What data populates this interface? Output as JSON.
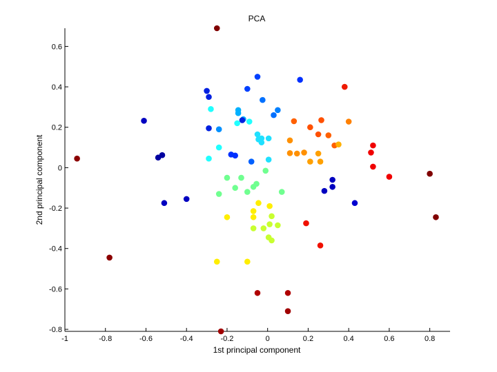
{
  "chart_data": {
    "type": "scatter",
    "title": "PCA",
    "xlabel": "1st principal component",
    "ylabel": "2nd principal component",
    "xlim": [
      -1,
      0.9
    ],
    "ylim": [
      -0.81,
      0.69
    ],
    "xticks": [
      -1,
      -0.8,
      -0.6,
      -0.4,
      -0.2,
      0,
      0.2,
      0.4,
      0.6,
      0.8
    ],
    "xtick_labels": [
      "-1",
      "-0.8",
      "-0.6",
      "-0.4",
      "-0.2",
      "0",
      "0.2",
      "0.4",
      "0.6",
      "0.8"
    ],
    "yticks": [
      -0.8,
      -0.6,
      -0.4,
      -0.2,
      0,
      0.2,
      0.4,
      0.6
    ],
    "ytick_labels": [
      "-0.8",
      "-0.6",
      "-0.4",
      "-0.2",
      "0",
      "0.2",
      "0.4",
      "0.6"
    ],
    "grid": false,
    "legend": "none",
    "colormap": "jet",
    "points": [
      {
        "x": -0.25,
        "y": 0.69,
        "color": "#800000"
      },
      {
        "x": -0.94,
        "y": 0.045,
        "color": "#8b0000"
      },
      {
        "x": -0.78,
        "y": -0.445,
        "color": "#8b0000"
      },
      {
        "x": 0.8,
        "y": -0.03,
        "color": "#800000"
      },
      {
        "x": 0.83,
        "y": -0.245,
        "color": "#800000"
      },
      {
        "x": -0.23,
        "y": -0.81,
        "color": "#a00000"
      },
      {
        "x": -0.05,
        "y": -0.62,
        "color": "#b00000"
      },
      {
        "x": 0.1,
        "y": -0.62,
        "color": "#b00000"
      },
      {
        "x": 0.1,
        "y": -0.71,
        "color": "#a00000"
      },
      {
        "x": 0.38,
        "y": 0.4,
        "color": "#ee1a00"
      },
      {
        "x": 0.52,
        "y": 0.11,
        "color": "#f00000"
      },
      {
        "x": 0.51,
        "y": 0.075,
        "color": "#f00000"
      },
      {
        "x": 0.52,
        "y": 0.005,
        "color": "#f00000"
      },
      {
        "x": 0.6,
        "y": -0.045,
        "color": "#f00000"
      },
      {
        "x": 0.19,
        "y": -0.275,
        "color": "#f01000"
      },
      {
        "x": 0.26,
        "y": -0.385,
        "color": "#f01000"
      },
      {
        "x": 0.13,
        "y": 0.23,
        "color": "#ff6000"
      },
      {
        "x": 0.21,
        "y": 0.2,
        "color": "#ff5000"
      },
      {
        "x": 0.265,
        "y": 0.235,
        "color": "#ff5000"
      },
      {
        "x": 0.25,
        "y": 0.165,
        "color": "#ff5000"
      },
      {
        "x": 0.3,
        "y": 0.16,
        "color": "#ff6000"
      },
      {
        "x": 0.33,
        "y": 0.11,
        "color": "#ff6000"
      },
      {
        "x": 0.4,
        "y": 0.228,
        "color": "#ff8000"
      },
      {
        "x": 0.11,
        "y": 0.135,
        "color": "#ff9000"
      },
      {
        "x": 0.11,
        "y": 0.072,
        "color": "#ff9000"
      },
      {
        "x": 0.145,
        "y": 0.07,
        "color": "#ff9000"
      },
      {
        "x": 0.18,
        "y": 0.075,
        "color": "#ff9000"
      },
      {
        "x": 0.21,
        "y": 0.03,
        "color": "#ffa000"
      },
      {
        "x": 0.25,
        "y": 0.07,
        "color": "#ffa000"
      },
      {
        "x": 0.26,
        "y": 0.03,
        "color": "#ffa000"
      },
      {
        "x": 0.35,
        "y": 0.115,
        "color": "#ffb000"
      },
      {
        "x": -0.045,
        "y": -0.175,
        "color": "#ffee00"
      },
      {
        "x": 0.01,
        "y": -0.19,
        "color": "#ffee00"
      },
      {
        "x": -0.2,
        "y": -0.245,
        "color": "#ffee00"
      },
      {
        "x": -0.07,
        "y": -0.215,
        "color": "#ffee00"
      },
      {
        "x": -0.07,
        "y": -0.245,
        "color": "#ffee00"
      },
      {
        "x": -0.25,
        "y": -0.465,
        "color": "#ffee00"
      },
      {
        "x": -0.1,
        "y": -0.465,
        "color": "#ffee00"
      },
      {
        "x": 0.02,
        "y": -0.24,
        "color": "#c8ff30"
      },
      {
        "x": 0.01,
        "y": -0.28,
        "color": "#c8ff30"
      },
      {
        "x": -0.07,
        "y": -0.3,
        "color": "#c8ff30"
      },
      {
        "x": -0.02,
        "y": -0.3,
        "color": "#c8ff30"
      },
      {
        "x": 0.05,
        "y": -0.285,
        "color": "#c8ff30"
      },
      {
        "x": 0.005,
        "y": -0.345,
        "color": "#c8ff30"
      },
      {
        "x": 0.02,
        "y": -0.36,
        "color": "#c8ff30"
      },
      {
        "x": -0.2,
        "y": -0.05,
        "color": "#70ff90"
      },
      {
        "x": -0.13,
        "y": -0.05,
        "color": "#70ff90"
      },
      {
        "x": -0.16,
        "y": -0.1,
        "color": "#70ff90"
      },
      {
        "x": -0.24,
        "y": -0.13,
        "color": "#70ff90"
      },
      {
        "x": -0.1,
        "y": -0.12,
        "color": "#70ff90"
      },
      {
        "x": -0.07,
        "y": -0.095,
        "color": "#70ff90"
      },
      {
        "x": -0.055,
        "y": -0.08,
        "color": "#70ff90"
      },
      {
        "x": -0.01,
        "y": -0.015,
        "color": "#70ff90"
      },
      {
        "x": 0.07,
        "y": -0.12,
        "color": "#70ff90"
      },
      {
        "x": -0.29,
        "y": 0.045,
        "color": "#20ffff"
      },
      {
        "x": -0.28,
        "y": 0.29,
        "color": "#20ffff"
      },
      {
        "x": -0.24,
        "y": 0.1,
        "color": "#20ffff"
      },
      {
        "x": -0.15,
        "y": 0.22,
        "color": "#20ffff"
      },
      {
        "x": -0.09,
        "y": 0.228,
        "color": "#20ffff"
      },
      {
        "x": -0.05,
        "y": 0.165,
        "color": "#20e0ff"
      },
      {
        "x": -0.045,
        "y": 0.14,
        "color": "#20e0ff"
      },
      {
        "x": -0.03,
        "y": 0.145,
        "color": "#20e0ff"
      },
      {
        "x": -0.03,
        "y": 0.125,
        "color": "#20e0ff"
      },
      {
        "x": 0.005,
        "y": 0.145,
        "color": "#20e0ff"
      },
      {
        "x": 0.005,
        "y": 0.04,
        "color": "#20e0ff"
      },
      {
        "x": -0.12,
        "y": 0.24,
        "color": "#00b0ff"
      },
      {
        "x": -0.145,
        "y": 0.285,
        "color": "#00b0ff"
      },
      {
        "x": -0.145,
        "y": 0.27,
        "color": "#00b0ff"
      },
      {
        "x": -0.24,
        "y": 0.19,
        "color": "#0090ff"
      },
      {
        "x": 0.05,
        "y": 0.285,
        "color": "#0080ff"
      },
      {
        "x": 0.03,
        "y": 0.26,
        "color": "#0070ff"
      },
      {
        "x": -0.025,
        "y": 0.335,
        "color": "#0070ff"
      },
      {
        "x": -0.05,
        "y": 0.45,
        "color": "#0040ff"
      },
      {
        "x": -0.1,
        "y": 0.39,
        "color": "#0040ff"
      },
      {
        "x": 0.16,
        "y": 0.435,
        "color": "#0030ff"
      },
      {
        "x": -0.3,
        "y": 0.38,
        "color": "#0020e0"
      },
      {
        "x": -0.29,
        "y": 0.35,
        "color": "#0020e0"
      },
      {
        "x": -0.29,
        "y": 0.195,
        "color": "#0020e0"
      },
      {
        "x": -0.125,
        "y": 0.235,
        "color": "#0020e0"
      },
      {
        "x": -0.08,
        "y": 0.03,
        "color": "#0060ff"
      },
      {
        "x": -0.18,
        "y": 0.065,
        "color": "#0030ff"
      },
      {
        "x": -0.16,
        "y": 0.06,
        "color": "#0030ff"
      },
      {
        "x": -0.61,
        "y": 0.232,
        "color": "#0000c0"
      },
      {
        "x": -0.54,
        "y": 0.05,
        "color": "#0000a0"
      },
      {
        "x": -0.52,
        "y": 0.062,
        "color": "#0000a0"
      },
      {
        "x": -0.51,
        "y": -0.175,
        "color": "#0000c0"
      },
      {
        "x": -0.4,
        "y": -0.155,
        "color": "#0000c0"
      },
      {
        "x": 0.32,
        "y": -0.06,
        "color": "#0000c0"
      },
      {
        "x": 0.32,
        "y": -0.095,
        "color": "#0000c0"
      },
      {
        "x": 0.28,
        "y": -0.115,
        "color": "#0000c0"
      },
      {
        "x": 0.43,
        "y": -0.175,
        "color": "#0000d0"
      }
    ]
  }
}
